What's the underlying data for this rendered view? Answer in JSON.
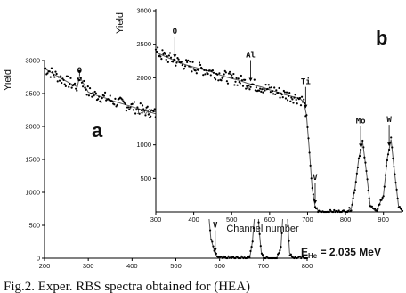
{
  "chart_data": [
    {
      "panel": "a",
      "type": "scatter",
      "xlabel": "Channel number",
      "ylabel": "Yield",
      "xlim": [
        200,
        800
      ],
      "ylim": [
        0,
        3000
      ],
      "xticks": [
        200,
        300,
        400,
        500,
        600,
        700,
        800
      ],
      "yticks": [
        0,
        500,
        1000,
        1500,
        2000,
        2500,
        3000
      ],
      "grid": false,
      "series": [
        {
          "x": [
            200,
            220,
            240,
            260,
            275,
            280,
            300,
            320,
            340,
            360,
            380,
            400,
            420,
            440,
            460,
            480,
            500,
            520,
            540,
            555,
            565,
            572,
            580,
            590,
            600,
            640,
            660,
            670,
            675,
            680,
            685,
            690,
            695,
            700,
            710,
            720,
            730,
            740,
            745,
            750,
            755,
            760,
            770,
            780,
            800
          ],
          "y": [
            2880,
            2800,
            2720,
            2650,
            2600,
            2760,
            2520,
            2470,
            2430,
            2380,
            2340,
            2300,
            2260,
            2220,
            2180,
            2140,
            2100,
            2060,
            2030,
            1950,
            1500,
            900,
            300,
            60,
            0,
            0,
            0,
            50,
            250,
            650,
            1150,
            450,
            100,
            0,
            0,
            0,
            0,
            150,
            700,
            1280,
            600,
            80,
            0,
            0,
            0
          ]
        }
      ],
      "annotations": [
        {
          "text": "O",
          "x": 280
        },
        {
          "text": "Al",
          "x": 500
        },
        {
          "text": "Ti",
          "x": 575
        },
        {
          "text": "V",
          "x": 590
        },
        {
          "text": "Mo",
          "x": 685
        },
        {
          "text": "W",
          "x": 750
        }
      ]
    },
    {
      "panel": "b",
      "type": "scatter",
      "xlabel": "",
      "ylabel": "Yield",
      "xlim": [
        300,
        950
      ],
      "ylim": [
        0,
        3000
      ],
      "xticks": [
        300,
        400,
        500,
        600,
        700,
        800,
        900
      ],
      "yticks": [
        500,
        1000,
        1500,
        2000,
        2500,
        3000
      ],
      "grid": false,
      "series": [
        {
          "x": [
            300,
            320,
            340,
            360,
            380,
            400,
            420,
            440,
            460,
            480,
            500,
            520,
            540,
            560,
            580,
            600,
            620,
            640,
            660,
            680,
            690,
            697,
            705,
            712,
            720,
            730,
            800,
            815,
            825,
            835,
            845,
            855,
            865,
            880,
            900,
            910,
            920,
            930,
            940,
            950
          ],
          "y": [
            2380,
            2330,
            2280,
            2230,
            2190,
            2160,
            2130,
            2100,
            2060,
            2020,
            1990,
            1960,
            1920,
            1890,
            1860,
            1820,
            1790,
            1750,
            1720,
            1690,
            1640,
            1450,
            900,
            350,
            80,
            0,
            0,
            50,
            350,
            800,
            1050,
            600,
            100,
            0,
            250,
            800,
            1080,
            550,
            80,
            0
          ]
        }
      ],
      "annotations": [
        {
          "text": "O",
          "x": 350
        },
        {
          "text": "Al",
          "x": 550
        },
        {
          "text": "Ti",
          "x": 695
        },
        {
          "text": "V",
          "x": 720
        },
        {
          "text": "Mo",
          "x": 840
        },
        {
          "text": "W",
          "x": 915
        }
      ]
    }
  ],
  "labels": {
    "panel_a": "a",
    "panel_b": "b",
    "y_a": "Yield",
    "y_b": "Yield",
    "x_a": "Channel number",
    "energy": "E",
    "energy_sub": "He",
    "energy_value": " = 2.035 MeV",
    "caption": "Fig.2.   Exper. RBS spectra obtained for (HEA)"
  },
  "colors": {
    "points": "#000000",
    "fit": "#555555",
    "axis": "#000000"
  }
}
